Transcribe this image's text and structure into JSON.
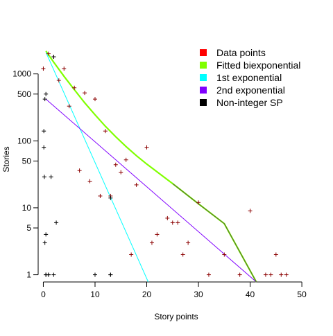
{
  "chart_data": {
    "type": "scatter",
    "title": "",
    "xlabel": "Story points",
    "ylabel": "Stories",
    "xlim": [
      -1,
      52
    ],
    "ylim": [
      0.78,
      2900
    ],
    "y_scale": "log",
    "x_ticks": [
      0,
      10,
      20,
      30,
      40,
      50
    ],
    "y_ticks": [
      1,
      5,
      10,
      50,
      100,
      500,
      1000
    ],
    "grid": false,
    "legend_position": "top-right",
    "legend": [
      {
        "label": "Data points",
        "color": "#ff0000"
      },
      {
        "label": "Fitted biexponential",
        "color": "#80ff00"
      },
      {
        "label": "1st exponential",
        "color": "#00ffff"
      },
      {
        "label": "2nd exponential",
        "color": "#8000ff"
      },
      {
        "label": "Non-integer SP",
        "color": "#000000"
      }
    ],
    "series": [
      {
        "kind": "points",
        "marker": "plus",
        "color": "#8b0000",
        "x": [
          0,
          1,
          2,
          3,
          4,
          5,
          6,
          7,
          8,
          9,
          10,
          11,
          12,
          13,
          14,
          15,
          16,
          17,
          18,
          20,
          21,
          22,
          24,
          25,
          26,
          27,
          28,
          30,
          32,
          35,
          38,
          40,
          43,
          44,
          45,
          46,
          47
        ],
        "y": [
          1200,
          2000,
          1800,
          800,
          1200,
          330,
          620,
          36,
          520,
          25,
          420,
          15,
          140,
          15,
          44,
          34,
          52,
          2,
          22,
          80,
          3,
          4,
          7,
          6,
          6,
          2,
          3,
          12,
          1,
          2,
          1,
          9,
          1,
          1,
          2,
          1,
          1
        ]
      },
      {
        "kind": "points",
        "marker": "plus",
        "color": "#000000",
        "x": [
          0.1,
          0.1,
          0.2,
          0.3,
          0.3,
          0.5,
          0.5,
          0.5,
          0.5,
          1,
          1,
          1.5,
          2,
          2.5,
          2,
          10,
          13,
          13,
          13
        ],
        "y": [
          80,
          140,
          29,
          3,
          420,
          500,
          1,
          1,
          4,
          1,
          1,
          29,
          1,
          6,
          1800,
          1,
          14,
          1,
          1
        ]
      },
      {
        "kind": "line",
        "color": "#80ff00",
        "stroke": "thick",
        "x": [
          0.5,
          2,
          4,
          6,
          8,
          10,
          12,
          14,
          16,
          18,
          20,
          25,
          30,
          35,
          41.2
        ],
        "y": [
          2200,
          1500,
          920,
          580,
          370,
          245,
          165,
          115,
          82,
          60,
          45,
          23,
          11.5,
          5.8,
          0.78
        ]
      },
      {
        "kind": "line",
        "color": "#00ffff",
        "x": [
          0.5,
          20.3
        ],
        "y": [
          2100,
          0.78
        ]
      },
      {
        "kind": "line",
        "color": "#8000ff",
        "x": [
          0.5,
          41.2
        ],
        "y": [
          420,
          0.78
        ]
      }
    ]
  }
}
